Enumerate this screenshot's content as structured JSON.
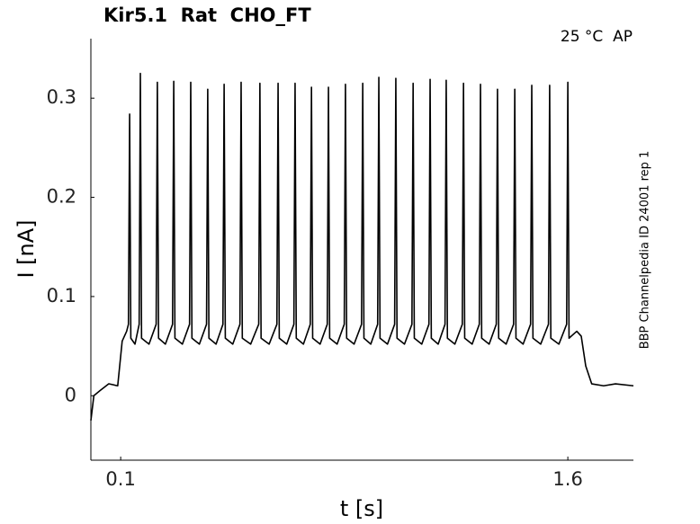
{
  "chart_data": {
    "type": "line",
    "title": "Kir5.1  Rat  CHO_FT",
    "annotation": "25 °C  AP",
    "side_label": "BBP Channelpedia ID 24001 rep 1",
    "xlabel": "t [s]",
    "ylabel": "I [nA]",
    "color": "#000000",
    "xlim": [
      0,
      1.82
    ],
    "ylim": [
      -0.065,
      0.36
    ],
    "xticks": [
      0.1,
      1.6
    ],
    "yticks": [
      0,
      0.1,
      0.2,
      0.3
    ],
    "x": [
      0,
      0.01,
      0.03,
      0.06,
      0.09,
      0.105,
      0.12,
      0.126,
      0.13,
      0.134,
      0.148,
      0.162,
      0.166,
      0.17,
      0.195,
      0.219,
      0.223,
      0.227,
      0.25,
      0.274,
      0.278,
      0.282,
      0.307,
      0.331,
      0.335,
      0.339,
      0.364,
      0.388,
      0.392,
      0.396,
      0.42,
      0.443,
      0.447,
      0.451,
      0.476,
      0.5,
      0.504,
      0.508,
      0.536,
      0.563,
      0.567,
      0.571,
      0.598,
      0.624,
      0.628,
      0.632,
      0.657,
      0.681,
      0.685,
      0.689,
      0.713,
      0.736,
      0.74,
      0.744,
      0.769,
      0.793,
      0.797,
      0.801,
      0.826,
      0.85,
      0.854,
      0.858,
      0.883,
      0.908,
      0.912,
      0.916,
      0.939,
      0.962,
      0.966,
      0.97,
      0.995,
      1.019,
      1.023,
      1.027,
      1.052,
      1.077,
      1.081,
      1.085,
      1.11,
      1.134,
      1.138,
      1.142,
      1.165,
      1.188,
      1.192,
      1.196,
      1.221,
      1.246,
      1.25,
      1.254,
      1.279,
      1.303,
      1.307,
      1.311,
      1.336,
      1.36,
      1.364,
      1.368,
      1.393,
      1.418,
      1.422,
      1.426,
      1.45,
      1.475,
      1.479,
      1.483,
      1.509,
      1.535,
      1.539,
      1.543,
      1.57,
      1.596,
      1.6,
      1.604,
      1.63,
      1.645,
      1.66,
      1.68,
      1.72,
      1.76,
      1.82
    ],
    "values": [
      -0.025,
      0,
      0.005,
      0.012,
      0.01,
      0.055,
      0.065,
      0.072,
      0.284,
      0.058,
      0.052,
      0.072,
      0.325,
      0.058,
      0.052,
      0.072,
      0.316,
      0.058,
      0.052,
      0.072,
      0.317,
      0.058,
      0.052,
      0.072,
      0.316,
      0.058,
      0.052,
      0.072,
      0.309,
      0.058,
      0.052,
      0.072,
      0.314,
      0.058,
      0.052,
      0.072,
      0.316,
      0.058,
      0.052,
      0.072,
      0.315,
      0.058,
      0.052,
      0.072,
      0.315,
      0.058,
      0.052,
      0.072,
      0.315,
      0.058,
      0.052,
      0.072,
      0.311,
      0.058,
      0.052,
      0.072,
      0.311,
      0.058,
      0.052,
      0.072,
      0.314,
      0.058,
      0.052,
      0.072,
      0.315,
      0.058,
      0.052,
      0.072,
      0.321,
      0.058,
      0.052,
      0.072,
      0.32,
      0.058,
      0.052,
      0.072,
      0.315,
      0.058,
      0.052,
      0.072,
      0.319,
      0.058,
      0.052,
      0.072,
      0.318,
      0.058,
      0.052,
      0.072,
      0.315,
      0.058,
      0.052,
      0.072,
      0.314,
      0.058,
      0.052,
      0.072,
      0.309,
      0.058,
      0.052,
      0.072,
      0.309,
      0.058,
      0.052,
      0.072,
      0.313,
      0.058,
      0.052,
      0.072,
      0.313,
      0.058,
      0.052,
      0.072,
      0.316,
      0.058,
      0.065,
      0.06,
      0.03,
      0.012,
      0.01,
      0.012,
      0.01
    ]
  }
}
